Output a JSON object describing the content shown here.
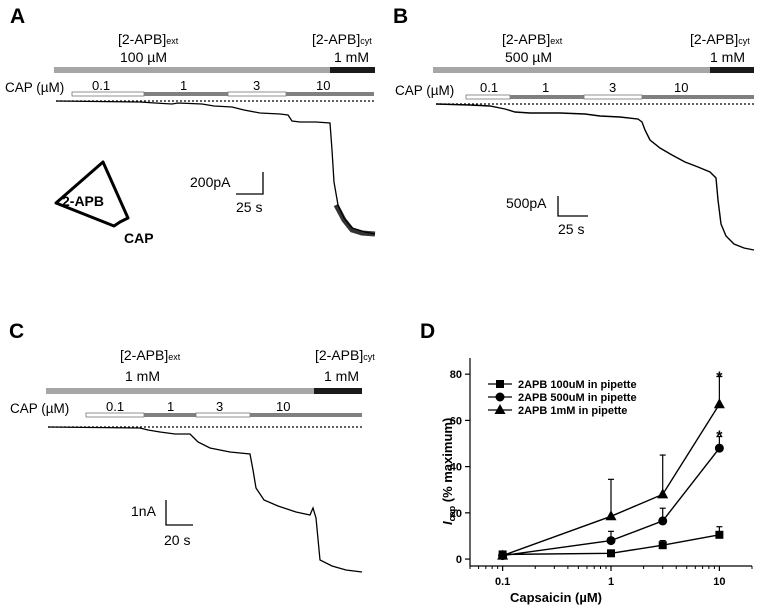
{
  "panels": [
    {
      "label": "A",
      "ext_label": "[2-APB]",
      "ext_sub": "ext",
      "ext_conc": "100 µM",
      "cyt_label": "[2-APB]",
      "cyt_sub": "cyt",
      "cyt_conc": "1 mM",
      "cap_label": "CAP (µM)",
      "cap_segments": [
        "0.1",
        "1",
        "3",
        "10"
      ],
      "scale_y": "200pA",
      "scale_x": "25 s",
      "trace_levels_pA": [
        0,
        -25,
        -90,
        -580
      ]
    },
    {
      "label": "B",
      "ext_label": "[2-APB]",
      "ext_sub": "ext",
      "ext_conc": "500 µM",
      "cyt_label": "[2-APB]",
      "cyt_sub": "cyt",
      "cyt_conc": "1 mM",
      "cap_label": "CAP (µM)",
      "cap_segments": [
        "0.1",
        "1",
        "3",
        "10"
      ],
      "scale_y": "500pA",
      "scale_x": "25 s",
      "trace_levels_pA": [
        0,
        -60,
        -300,
        -1550
      ]
    },
    {
      "label": "C",
      "ext_label": "[2-APB]",
      "ext_sub": "ext",
      "ext_conc": "1 mM",
      "cyt_label": "[2-APB]",
      "cyt_sub": "cyt",
      "cyt_conc": "1 mM",
      "cap_label": "CAP (µM)",
      "cap_segments": [
        "0.1",
        "1",
        "3",
        "10"
      ],
      "scale_y": "1nA",
      "scale_x": "20 s",
      "trace_levels_nA": [
        0,
        -0.1,
        -0.5,
        -1.8
      ]
    }
  ],
  "schematic": {
    "top_label": "2-APB",
    "bottom_label": "CAP"
  },
  "chart_data": {
    "type": "line",
    "panel_label": "D",
    "x": [
      0.1,
      1,
      3,
      10
    ],
    "xscale": "log",
    "xlim": [
      0.05,
      20
    ],
    "ylim": [
      -3,
      87
    ],
    "xticks": [
      "0.1",
      "1",
      "10"
    ],
    "yticks": [
      0,
      20,
      40,
      60,
      80
    ],
    "xlabel": "Capsaicin (µM)",
    "ylabel_main": "I",
    "ylabel_sub": "cap",
    "ylabel_rest": " (% maximum)",
    "legend_position": "top-left",
    "series": [
      {
        "name": "2APB 100uM in pipette",
        "marker": "square",
        "values": [
          2,
          2.5,
          6,
          10.5
        ],
        "err": [
          1,
          0.5,
          2,
          3.5
        ]
      },
      {
        "name": "2APB 500uM in pipette",
        "marker": "circle",
        "values": [
          1.5,
          8,
          16.5,
          48
        ],
        "err": [
          1,
          4,
          5.5,
          5
        ]
      },
      {
        "name": "2APB 1mM in pipette",
        "marker": "triangle",
        "values": [
          1.5,
          18.5,
          28,
          67
        ],
        "err": [
          1,
          16,
          17,
          12
        ]
      }
    ],
    "annotations": [
      {
        "x": 10,
        "y": 79,
        "text": "*"
      },
      {
        "x": 10,
        "y": 53.5,
        "text": "*"
      }
    ]
  }
}
